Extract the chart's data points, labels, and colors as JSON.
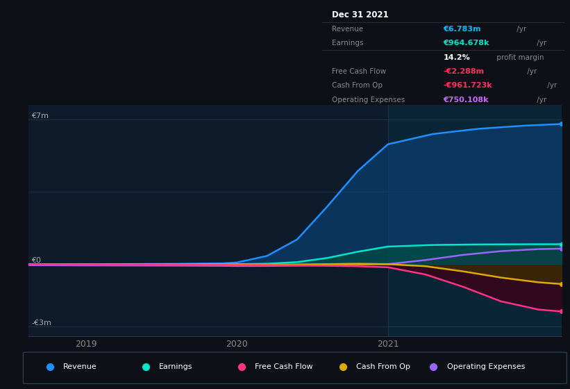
{
  "bg_color": "#0d1117",
  "plot_bg_color": "#0d1b2a",
  "shade_bg_color": "#0a2535",
  "x_ticks": [
    2019,
    2020,
    2021
  ],
  "ylim": [
    -3500000,
    7700000
  ],
  "xlim_start": 2018.62,
  "xlim_end": 2022.15,
  "shade_x_start": 2021.0,
  "info_box": {
    "title": "Dec 31 2021",
    "rows": [
      {
        "label": "Revenue",
        "value": "€6.783m",
        "unit": " /yr",
        "value_color": "#00bfff"
      },
      {
        "label": "Earnings",
        "value": "€964.678k",
        "unit": " /yr",
        "value_color": "#00e5cc"
      },
      {
        "label": "",
        "value": "14.2%",
        "unit": " profit margin",
        "value_color": "#ffffff"
      },
      {
        "label": "Free Cash Flow",
        "value": "-€2.288m",
        "unit": " /yr",
        "value_color": "#ff3060"
      },
      {
        "label": "Cash From Op",
        "value": "-€961.723k",
        "unit": " /yr",
        "value_color": "#ff3060"
      },
      {
        "label": "Operating Expenses",
        "value": "€750.108k",
        "unit": " /yr",
        "value_color": "#cc66ff"
      }
    ]
  },
  "series": {
    "revenue": {
      "color": "#1e90ff",
      "fill_color": "#0a3d6e",
      "label": "Revenue",
      "points_x": [
        2018.62,
        2019.0,
        2019.3,
        2019.6,
        2019.9,
        2020.0,
        2020.2,
        2020.4,
        2020.6,
        2020.8,
        2021.0,
        2021.3,
        2021.6,
        2021.9,
        2022.15
      ],
      "points_y": [
        0,
        0,
        5000,
        15000,
        40000,
        80000,
        400000,
        1200000,
        2800000,
        4500000,
        5800000,
        6300000,
        6550000,
        6700000,
        6783000
      ]
    },
    "earnings": {
      "color": "#00e5cc",
      "fill_color": "#004d44",
      "label": "Earnings",
      "points_x": [
        2018.62,
        2019.0,
        2019.3,
        2019.6,
        2019.9,
        2020.0,
        2020.2,
        2020.4,
        2020.6,
        2020.8,
        2021.0,
        2021.3,
        2021.6,
        2021.9,
        2022.15
      ],
      "points_y": [
        -5000,
        -5000,
        -5000,
        -5000,
        -3000,
        0,
        20000,
        100000,
        300000,
        600000,
        850000,
        930000,
        955000,
        963000,
        964678
      ]
    },
    "operating_expenses": {
      "color": "#9966ff",
      "fill_color": "#2a1a55",
      "label": "Operating Expenses",
      "points_x": [
        2018.62,
        2019.0,
        2019.3,
        2019.6,
        2019.9,
        2020.0,
        2020.2,
        2020.4,
        2020.6,
        2020.8,
        2021.0,
        2021.25,
        2021.5,
        2021.75,
        2022.0,
        2022.15
      ],
      "points_y": [
        -50000,
        -60000,
        -65000,
        -70000,
        -80000,
        -90000,
        -85000,
        -70000,
        -50000,
        -20000,
        0,
        200000,
        450000,
        630000,
        730000,
        750108
      ]
    },
    "cash_from_op": {
      "color": "#ddaa00",
      "fill_color": "#3d2e00",
      "label": "Cash From Op",
      "points_x": [
        2018.62,
        2019.0,
        2019.3,
        2019.6,
        2019.9,
        2020.0,
        2020.2,
        2020.4,
        2020.6,
        2020.8,
        2021.0,
        2021.25,
        2021.5,
        2021.75,
        2022.0,
        2022.15
      ],
      "points_y": [
        -10000,
        -10000,
        -12000,
        -15000,
        -18000,
        -22000,
        -20000,
        -15000,
        0,
        20000,
        0,
        -100000,
        -350000,
        -650000,
        -880000,
        -961723
      ]
    },
    "free_cash_flow": {
      "color": "#ff3388",
      "fill_color": "#3d0018",
      "label": "Free Cash Flow",
      "points_x": [
        2018.62,
        2019.0,
        2019.3,
        2019.6,
        2019.9,
        2020.0,
        2020.2,
        2020.4,
        2020.6,
        2020.8,
        2021.0,
        2021.25,
        2021.5,
        2021.75,
        2022.0,
        2022.15
      ],
      "points_y": [
        -20000,
        -25000,
        -30000,
        -35000,
        -40000,
        -50000,
        -50000,
        -60000,
        -80000,
        -100000,
        -150000,
        -500000,
        -1100000,
        -1800000,
        -2200000,
        -2288000
      ]
    }
  },
  "legend": [
    {
      "label": "Revenue",
      "color": "#1e90ff"
    },
    {
      "label": "Earnings",
      "color": "#00e5cc"
    },
    {
      "label": "Free Cash Flow",
      "color": "#ff3388"
    },
    {
      "label": "Cash From Op",
      "color": "#ddaa00"
    },
    {
      "label": "Operating Expenses",
      "color": "#9966ff"
    }
  ]
}
